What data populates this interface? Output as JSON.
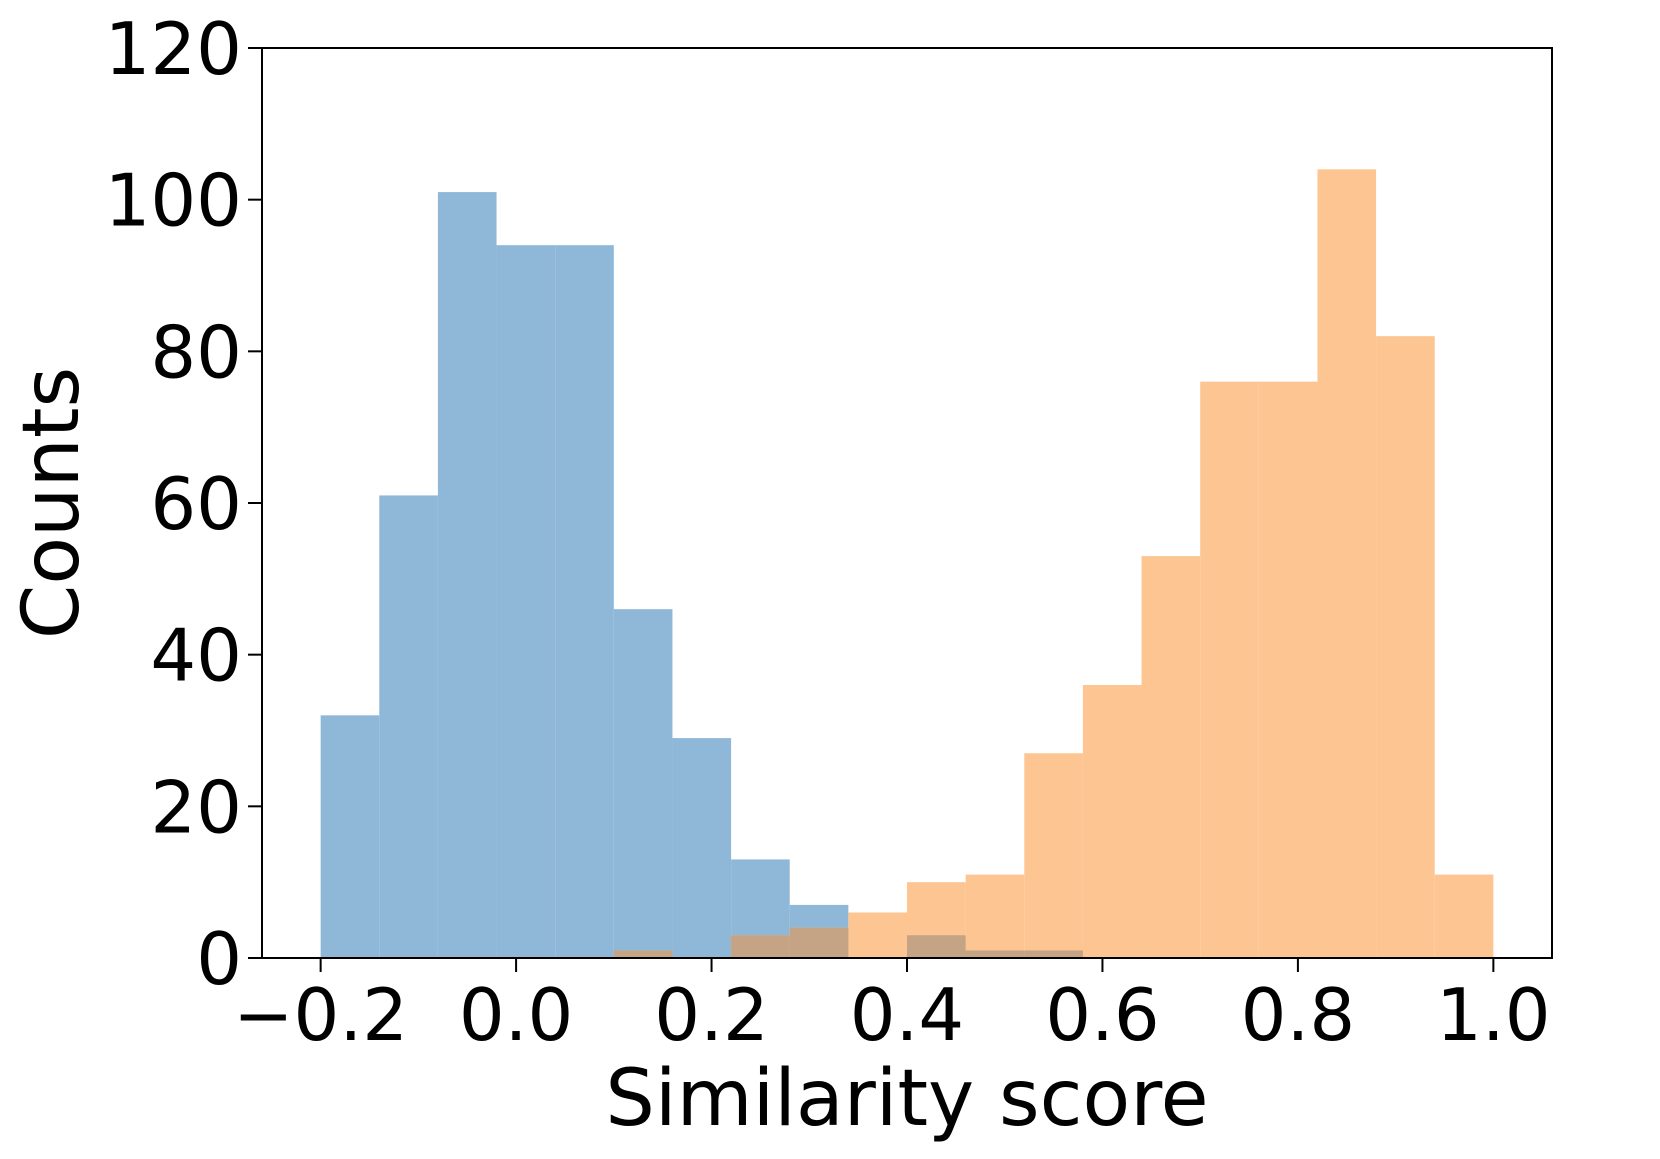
{
  "chart_data": {
    "type": "bar",
    "subtype": "overlapping-histogram",
    "title": "",
    "xlabel": "Similarity score",
    "ylabel": "Counts",
    "xlim": [
      -0.26,
      1.06
    ],
    "ylim": [
      0,
      120
    ],
    "xticks": [
      -0.2,
      0.0,
      0.2,
      0.4,
      0.6,
      0.8,
      1.0
    ],
    "xtick_labels": [
      "−0.2",
      "0.0",
      "0.2",
      "0.4",
      "0.6",
      "0.8",
      "1.0"
    ],
    "yticks": [
      0,
      20,
      40,
      60,
      80,
      100,
      120
    ],
    "ytick_labels": [
      "0",
      "20",
      "40",
      "60",
      "80",
      "100",
      "120"
    ],
    "grid": false,
    "legend": "none",
    "overlap_color": "#c4a484",
    "series": [
      {
        "color": "#8fb8d8",
        "bin_edges": [
          -0.2,
          -0.14,
          -0.08,
          -0.02,
          0.04,
          0.1,
          0.16,
          0.22,
          0.28,
          0.34,
          0.4,
          0.46,
          0.52,
          0.58
        ],
        "values": [
          32,
          61,
          101,
          94,
          94,
          46,
          29,
          13,
          7,
          0,
          3,
          1,
          1
        ]
      },
      {
        "color": "#fdc592",
        "bin_edges": [
          0.1,
          0.16,
          0.22,
          0.28,
          0.34,
          0.4,
          0.46,
          0.52,
          0.58,
          0.64,
          0.7,
          0.76,
          0.82,
          0.88,
          0.94,
          1.0
        ],
        "values": [
          1,
          0,
          3,
          4,
          6,
          10,
          11,
          27,
          36,
          53,
          76,
          76,
          104,
          82,
          11
        ]
      }
    ]
  }
}
